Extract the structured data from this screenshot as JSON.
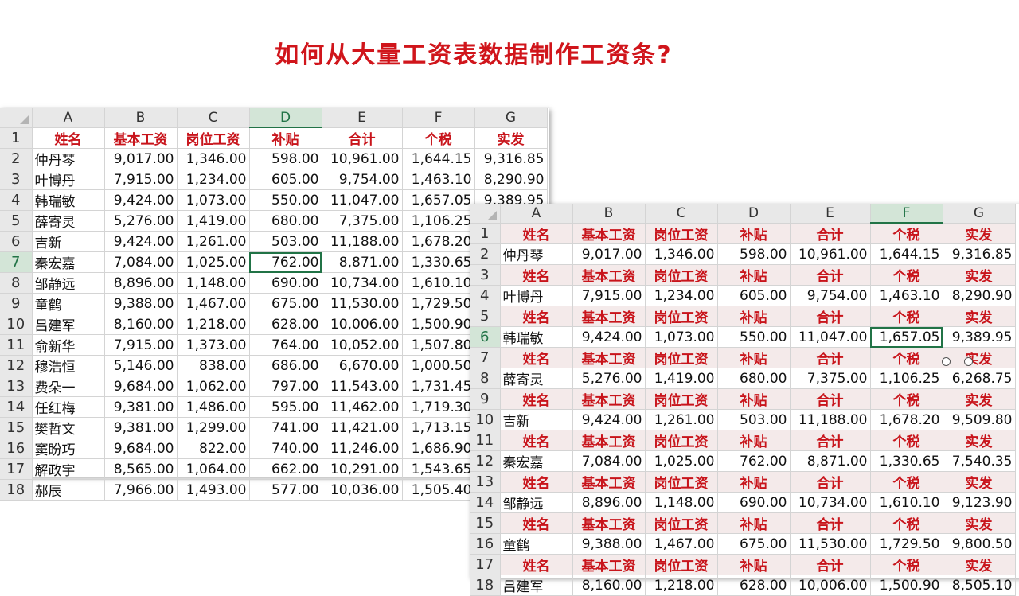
{
  "title": "如何从大量工资表数据制作工资条?",
  "columns": [
    "A",
    "B",
    "C",
    "D",
    "E",
    "F",
    "G"
  ],
  "headers": [
    "姓名",
    "基本工资",
    "岗位工资",
    "补贴",
    "合计",
    "个税",
    "实发"
  ],
  "sheet1": {
    "selected_column": "D",
    "selected_row": 7,
    "rows": [
      [
        "仲丹琴",
        "9,017.00",
        "1,346.00",
        "598.00",
        "10,961.00",
        "1,644.15",
        "9,316.85"
      ],
      [
        "叶博丹",
        "7,915.00",
        "1,234.00",
        "605.00",
        "9,754.00",
        "1,463.10",
        "8,290.90"
      ],
      [
        "韩瑞敏",
        "9,424.00",
        "1,073.00",
        "550.00",
        "11,047.00",
        "1,657.05",
        "9,389.95"
      ],
      [
        "薛寄灵",
        "5,276.00",
        "1,419.00",
        "680.00",
        "7,375.00",
        "1,106.25",
        ""
      ],
      [
        "吉新",
        "9,424.00",
        "1,261.00",
        "503.00",
        "11,188.00",
        "1,678.20",
        ""
      ],
      [
        "秦宏嘉",
        "7,084.00",
        "1,025.00",
        "762.00",
        "8,871.00",
        "1,330.65",
        ""
      ],
      [
        "邹静远",
        "8,896.00",
        "1,148.00",
        "690.00",
        "10,734.00",
        "1,610.10",
        ""
      ],
      [
        "童鹤",
        "9,388.00",
        "1,467.00",
        "675.00",
        "11,530.00",
        "1,729.50",
        ""
      ],
      [
        "吕建军",
        "8,160.00",
        "1,218.00",
        "628.00",
        "10,006.00",
        "1,500.90",
        ""
      ],
      [
        "俞新华",
        "7,915.00",
        "1,373.00",
        "764.00",
        "10,052.00",
        "1,507.80",
        ""
      ],
      [
        "穆浩恒",
        "5,146.00",
        "838.00",
        "686.00",
        "6,670.00",
        "1,000.50",
        ""
      ],
      [
        "费朵一",
        "9,684.00",
        "1,062.00",
        "797.00",
        "11,543.00",
        "1,731.45",
        ""
      ],
      [
        "任红梅",
        "9,381.00",
        "1,486.00",
        "595.00",
        "11,462.00",
        "1,719.30",
        ""
      ],
      [
        "樊哲文",
        "9,381.00",
        "1,299.00",
        "741.00",
        "11,421.00",
        "1,713.15",
        ""
      ],
      [
        "窦盼巧",
        "9,684.00",
        "822.00",
        "740.00",
        "11,246.00",
        "1,686.90",
        ""
      ],
      [
        "解政宇",
        "8,565.00",
        "1,064.00",
        "662.00",
        "10,291.00",
        "1,543.65",
        ""
      ],
      [
        "郝辰",
        "7,966.00",
        "1,493.00",
        "577.00",
        "10,036.00",
        "1,505.40",
        ""
      ]
    ]
  },
  "sheet2": {
    "selected_column": "F",
    "selected_row": 6,
    "records": [
      [
        "仲丹琴",
        "9,017.00",
        "1,346.00",
        "598.00",
        "10,961.00",
        "1,644.15",
        "9,316.85"
      ],
      [
        "叶博丹",
        "7,915.00",
        "1,234.00",
        "605.00",
        "9,754.00",
        "1,463.10",
        "8,290.90"
      ],
      [
        "韩瑞敏",
        "9,424.00",
        "1,073.00",
        "550.00",
        "11,047.00",
        "1,657.05",
        "9,389.95"
      ],
      [
        "薛寄灵",
        "5,276.00",
        "1,419.00",
        "680.00",
        "7,375.00",
        "1,106.25",
        "6,268.75"
      ],
      [
        "吉新",
        "9,424.00",
        "1,261.00",
        "503.00",
        "11,188.00",
        "1,678.20",
        "9,509.80"
      ],
      [
        "秦宏嘉",
        "7,084.00",
        "1,025.00",
        "762.00",
        "8,871.00",
        "1,330.65",
        "7,540.35"
      ],
      [
        "邹静远",
        "8,896.00",
        "1,148.00",
        "690.00",
        "10,734.00",
        "1,610.10",
        "9,123.90"
      ],
      [
        "童鹤",
        "9,388.00",
        "1,467.00",
        "675.00",
        "11,530.00",
        "1,729.50",
        "9,800.50"
      ],
      [
        "吕建军",
        "8,160.00",
        "1,218.00",
        "628.00",
        "10,006.00",
        "1,500.90",
        "8,505.10"
      ]
    ]
  }
}
